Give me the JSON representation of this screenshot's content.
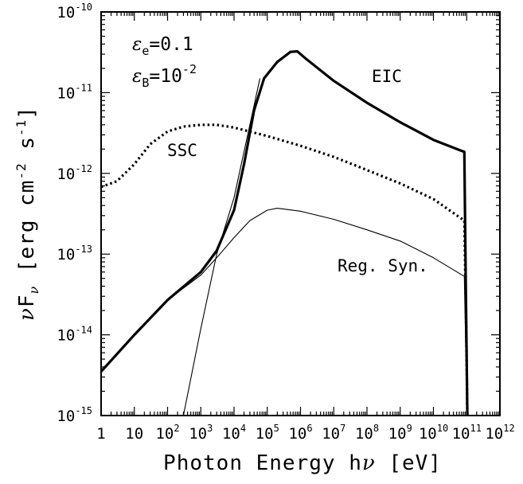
{
  "chart_data": {
    "type": "line",
    "xscale": "log",
    "yscale": "log",
    "xlim": [
      1,
      1000000000000.0
    ],
    "ylim": [
      1e-15,
      1e-10
    ],
    "xlabel": {
      "base": "Photon Energy h",
      "greek": "ν",
      "unit": "[eV]"
    },
    "ylabel": {
      "greek": "ν",
      "f": "F",
      "sub": "ν",
      "unit_open": "[erg cm",
      "exp1": "-2",
      "mid": " s",
      "exp2": "-1",
      "close": "]"
    },
    "x_tick_labels": [
      {
        "base": "1",
        "exp": ""
      },
      {
        "base": "10",
        "exp": ""
      },
      {
        "base": "10",
        "exp": "2"
      },
      {
        "base": "10",
        "exp": "3"
      },
      {
        "base": "10",
        "exp": "4"
      },
      {
        "base": "10",
        "exp": "5"
      },
      {
        "base": "10",
        "exp": "6"
      },
      {
        "base": "10",
        "exp": "7"
      },
      {
        "base": "10",
        "exp": "8"
      },
      {
        "base": "10",
        "exp": "9"
      },
      {
        "base": "10",
        "exp": "10"
      },
      {
        "base": "10",
        "exp": "11"
      },
      {
        "base": "10",
        "exp": "12"
      }
    ],
    "y_tick_labels": [
      {
        "base": "10",
        "exp": "-10"
      },
      {
        "base": "10",
        "exp": "-11"
      },
      {
        "base": "10",
        "exp": "-12"
      },
      {
        "base": "10",
        "exp": "-13"
      },
      {
        "base": "10",
        "exp": "-14"
      },
      {
        "base": "10",
        "exp": "-15"
      }
    ],
    "parameters": {
      "eps_e": {
        "symbol": "ε",
        "sub": "e",
        "value": "=0.1"
      },
      "eps_B": {
        "symbol": "ε",
        "sub": "B",
        "value": "=10",
        "exp": "-2"
      }
    },
    "annotations": [
      "EIC",
      "SSC",
      "Reg. Syn."
    ],
    "series": [
      {
        "name": "EIC",
        "style": "thick-solid",
        "points": [
          [
            1,
            3.5e-15
          ],
          [
            10,
            1e-14
          ],
          [
            100,
            2.7e-14
          ],
          [
            1000,
            6e-14
          ],
          [
            3000,
            1.1e-13
          ],
          [
            10000,
            3.5e-13
          ],
          [
            20000,
            1.3e-12
          ],
          [
            40000,
            6e-12
          ],
          [
            80000,
            1.5e-11
          ],
          [
            200000,
            2.4e-11
          ],
          [
            500000,
            3.2e-11
          ],
          [
            800000,
            3.25e-11
          ],
          [
            1500000,
            2.6e-11
          ],
          [
            10000000,
            1.4e-11
          ],
          [
            100000000,
            7.5e-12
          ],
          [
            1000000000,
            4.3e-12
          ],
          [
            10000000000,
            2.6e-12
          ],
          [
            70000000000,
            1.9e-12
          ],
          [
            85000000000,
            1.85e-12
          ],
          [
            95000000000,
            3e-14
          ],
          [
            105000000000,
            1e-15
          ]
        ]
      },
      {
        "name": "SSC",
        "style": "dotted",
        "points": [
          [
            1,
            6.8e-13
          ],
          [
            3,
            8e-13
          ],
          [
            10,
            1.3e-12
          ],
          [
            30,
            2.3e-12
          ],
          [
            100,
            3.3e-12
          ],
          [
            300,
            3.8e-12
          ],
          [
            1000,
            4e-12
          ],
          [
            3000,
            4e-12
          ],
          [
            10000,
            3.7e-12
          ],
          [
            100000,
            2.9e-12
          ],
          [
            1000000,
            2.2e-12
          ],
          [
            10000000,
            1.6e-12
          ],
          [
            100000000,
            1.1e-12
          ],
          [
            1000000000,
            7.5e-13
          ],
          [
            10000000000,
            4.8e-13
          ],
          [
            85000000000,
            2.6e-13
          ],
          [
            95000000000,
            2e-14
          ],
          [
            105000000000,
            1e-15
          ]
        ]
      },
      {
        "name": "Reg. Syn.",
        "style": "thin-solid",
        "points": [
          [
            1,
            3.5e-15
          ],
          [
            10,
            1e-14
          ],
          [
            100,
            2.7e-14
          ],
          [
            1000,
            5.5e-14
          ],
          [
            3000,
            9e-14
          ],
          [
            10000,
            1.6e-13
          ],
          [
            30000,
            2.6e-13
          ],
          [
            100000,
            3.5e-13
          ],
          [
            200000,
            3.7e-13
          ],
          [
            1000000,
            3.4e-13
          ],
          [
            10000000,
            2.7e-13
          ],
          [
            100000000,
            2e-13
          ],
          [
            1000000000,
            1.45e-13
          ],
          [
            10000000000,
            9e-14
          ],
          [
            85000000000,
            5.3e-14
          ],
          [
            95000000000,
            5e-15
          ],
          [
            105000000000,
            1e-15
          ]
        ]
      },
      {
        "name": "",
        "style": "thin-solid",
        "points": [
          [
            300,
            1e-15
          ],
          [
            1000,
            1.2e-14
          ],
          [
            3000,
            1e-13
          ],
          [
            10000,
            5e-13
          ],
          [
            30000,
            4e-12
          ],
          [
            60000,
            1.5e-11
          ]
        ]
      }
    ]
  }
}
